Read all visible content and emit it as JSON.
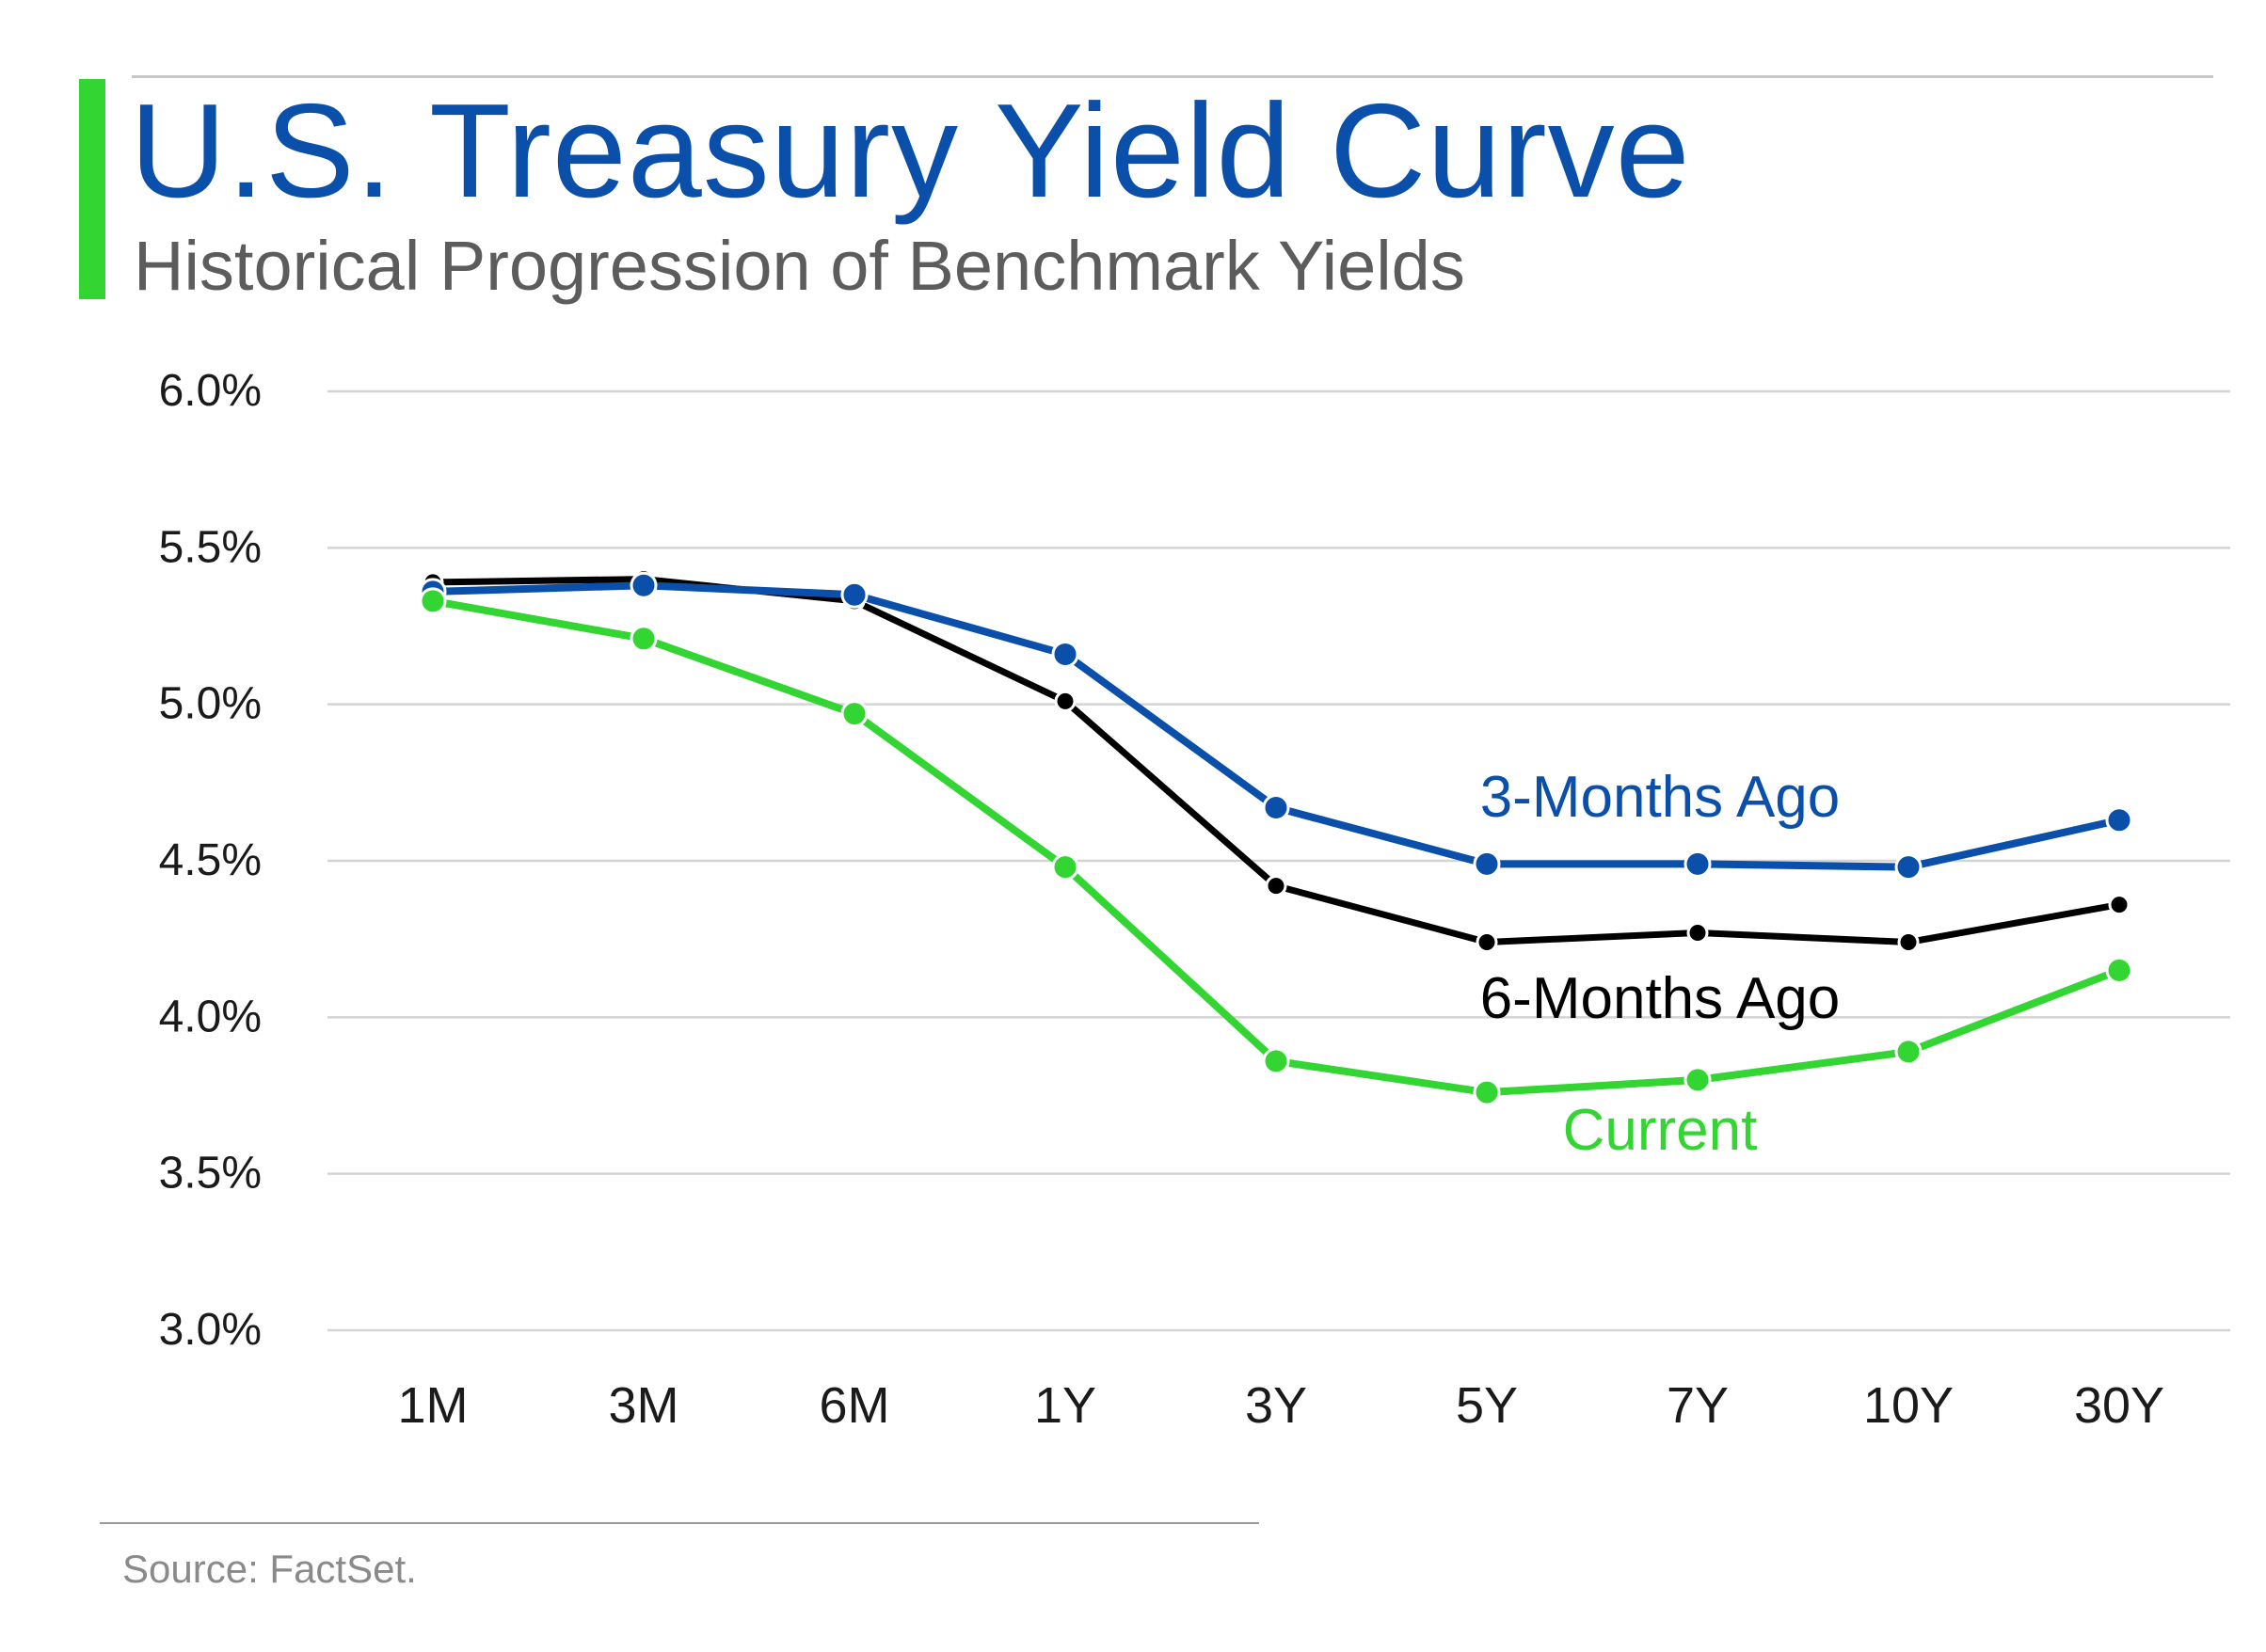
{
  "header": {
    "title": "U.S. Treasury Yield Curve",
    "subtitle": "Historical Progression of Benchmark Yields"
  },
  "footer": {
    "source": "Source: FactSet."
  },
  "colors": {
    "accent": "#33d533",
    "title": "#0a50aa",
    "grid": "#d4d4d4"
  },
  "chart_data": {
    "type": "line",
    "title": "U.S. Treasury Yield Curve",
    "subtitle": "Historical Progression of Benchmark Yields",
    "categories": [
      "1M",
      "3M",
      "6M",
      "1Y",
      "3Y",
      "5Y",
      "7Y",
      "10Y",
      "30Y"
    ],
    "y_ticks": [
      "6.0%",
      "5.5%",
      "5.0%",
      "4.5%",
      "4.0%",
      "3.5%",
      "3.0%"
    ],
    "ylim": [
      3.0,
      6.0
    ],
    "grid": true,
    "legend": "inline labels",
    "series": [
      {
        "name": "6-Months Ago",
        "color": "#000000",
        "values": [
          5.39,
          5.4,
          5.33,
          5.01,
          4.42,
          4.24,
          4.27,
          4.24,
          4.36
        ]
      },
      {
        "name": "3-Months Ago",
        "color": "#0a50aa",
        "values": [
          5.36,
          5.38,
          5.35,
          5.16,
          4.67,
          4.49,
          4.49,
          4.48,
          4.63
        ]
      },
      {
        "name": "Current",
        "color": "#33d533",
        "values": [
          5.33,
          5.21,
          4.97,
          4.48,
          3.86,
          3.76,
          3.8,
          3.89,
          4.15
        ]
      }
    ]
  }
}
